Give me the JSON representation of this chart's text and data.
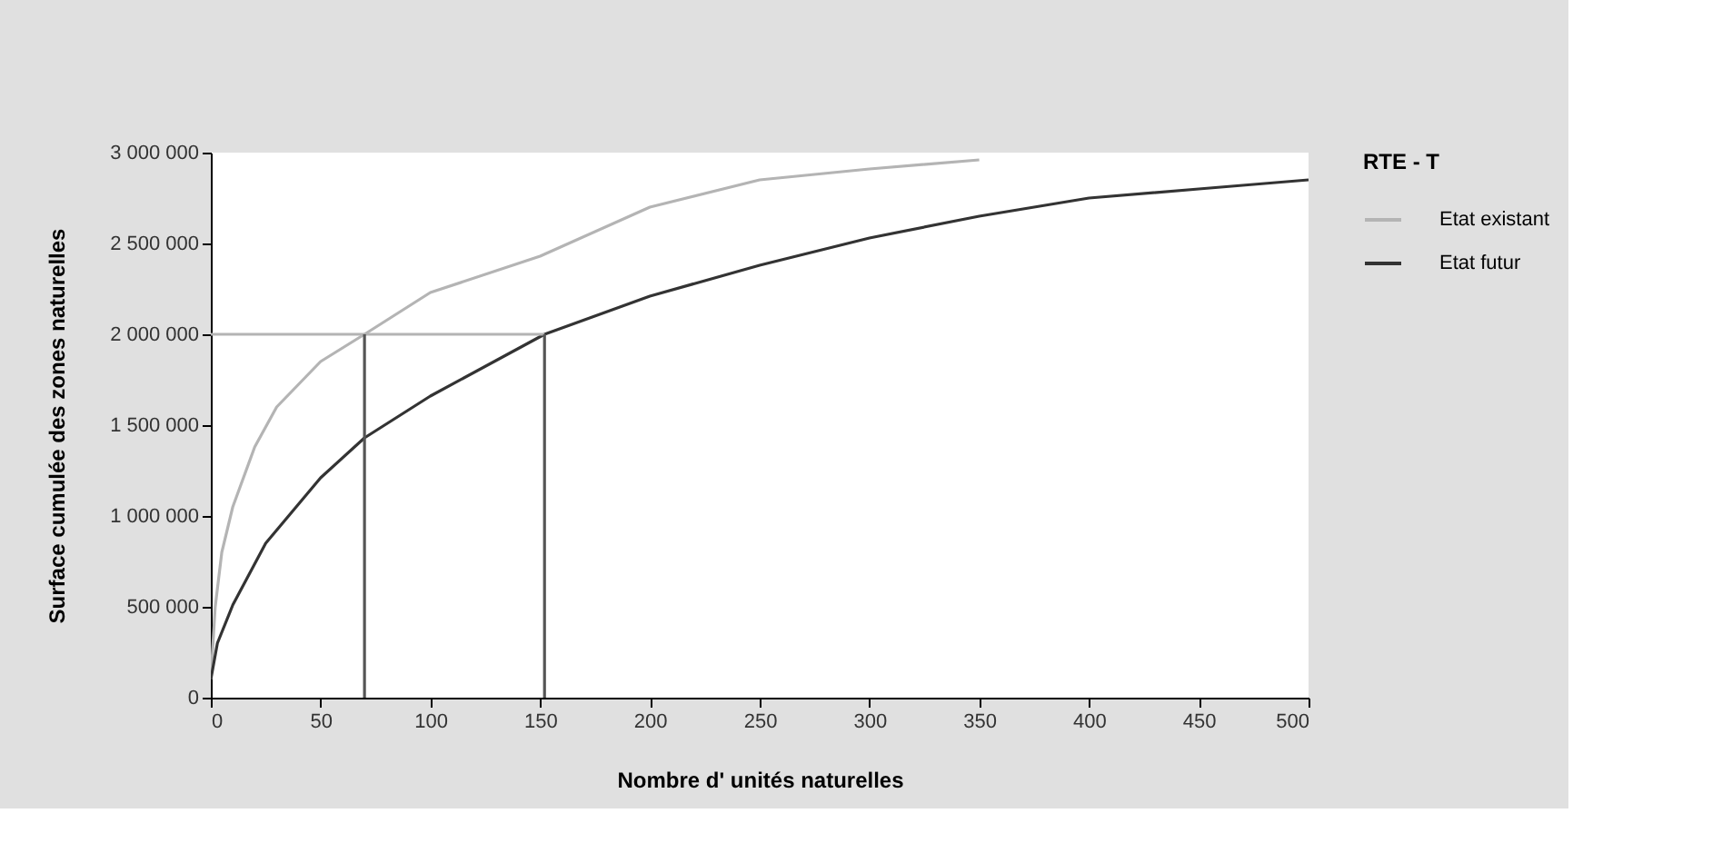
{
  "chart_data": {
    "type": "line",
    "xlabel": "Nombre d' unités naturelles",
    "ylabel": "Surface cumulée des zones naturelles",
    "legend_title": "RTE - T",
    "xlim": [
      0,
      500
    ],
    "xticks": [
      0,
      50,
      100,
      150,
      200,
      250,
      300,
      350,
      400,
      450,
      500
    ],
    "ylim": [
      0,
      3000000
    ],
    "yticks": [
      0,
      {
        "value": 500000,
        "label": "500 000"
      },
      {
        "value": 1000000,
        "label": "1 000 000"
      },
      {
        "value": 1500000,
        "label": "1 500 000"
      },
      {
        "value": 2000000,
        "label": "2 000 000"
      },
      {
        "value": 2500000,
        "label": "2 500 000"
      },
      {
        "value": 3000000,
        "label": "3 000 000"
      }
    ],
    "grid": false,
    "legend": "right",
    "marker": "none",
    "line_style": "solid",
    "series": [
      {
        "name": "Etat existant",
        "color": "#b4b4b4",
        "x": [
          0,
          2,
          5,
          10,
          20,
          30,
          50,
          70,
          100,
          150,
          200,
          250,
          300,
          350
        ],
        "values": [
          100000,
          500000,
          800000,
          1050000,
          1380000,
          1600000,
          1850000,
          2000000,
          2230000,
          2430000,
          2700000,
          2850000,
          2910000,
          2960000
        ]
      },
      {
        "name": "Etat futur",
        "color": "#333333",
        "x": [
          0,
          3,
          10,
          25,
          50,
          70,
          100,
          152,
          200,
          250,
          300,
          350,
          400,
          450,
          500
        ],
        "values": [
          100000,
          300000,
          510000,
          850000,
          1210000,
          1430000,
          1660000,
          2000000,
          2210000,
          2380000,
          2530000,
          2650000,
          2750000,
          2800000,
          2850000
        ]
      },
      {
        "color": "#b4b4b4",
        "x": [
          0,
          152
        ],
        "values": [
          2000000,
          2000000
        ]
      },
      {
        "color": "#555555",
        "x": [
          70,
          70
        ],
        "values": [
          0,
          2000000
        ]
      },
      {
        "color": "#555555",
        "x": [
          152,
          152
        ],
        "values": [
          0,
          2000000
        ]
      }
    ]
  }
}
